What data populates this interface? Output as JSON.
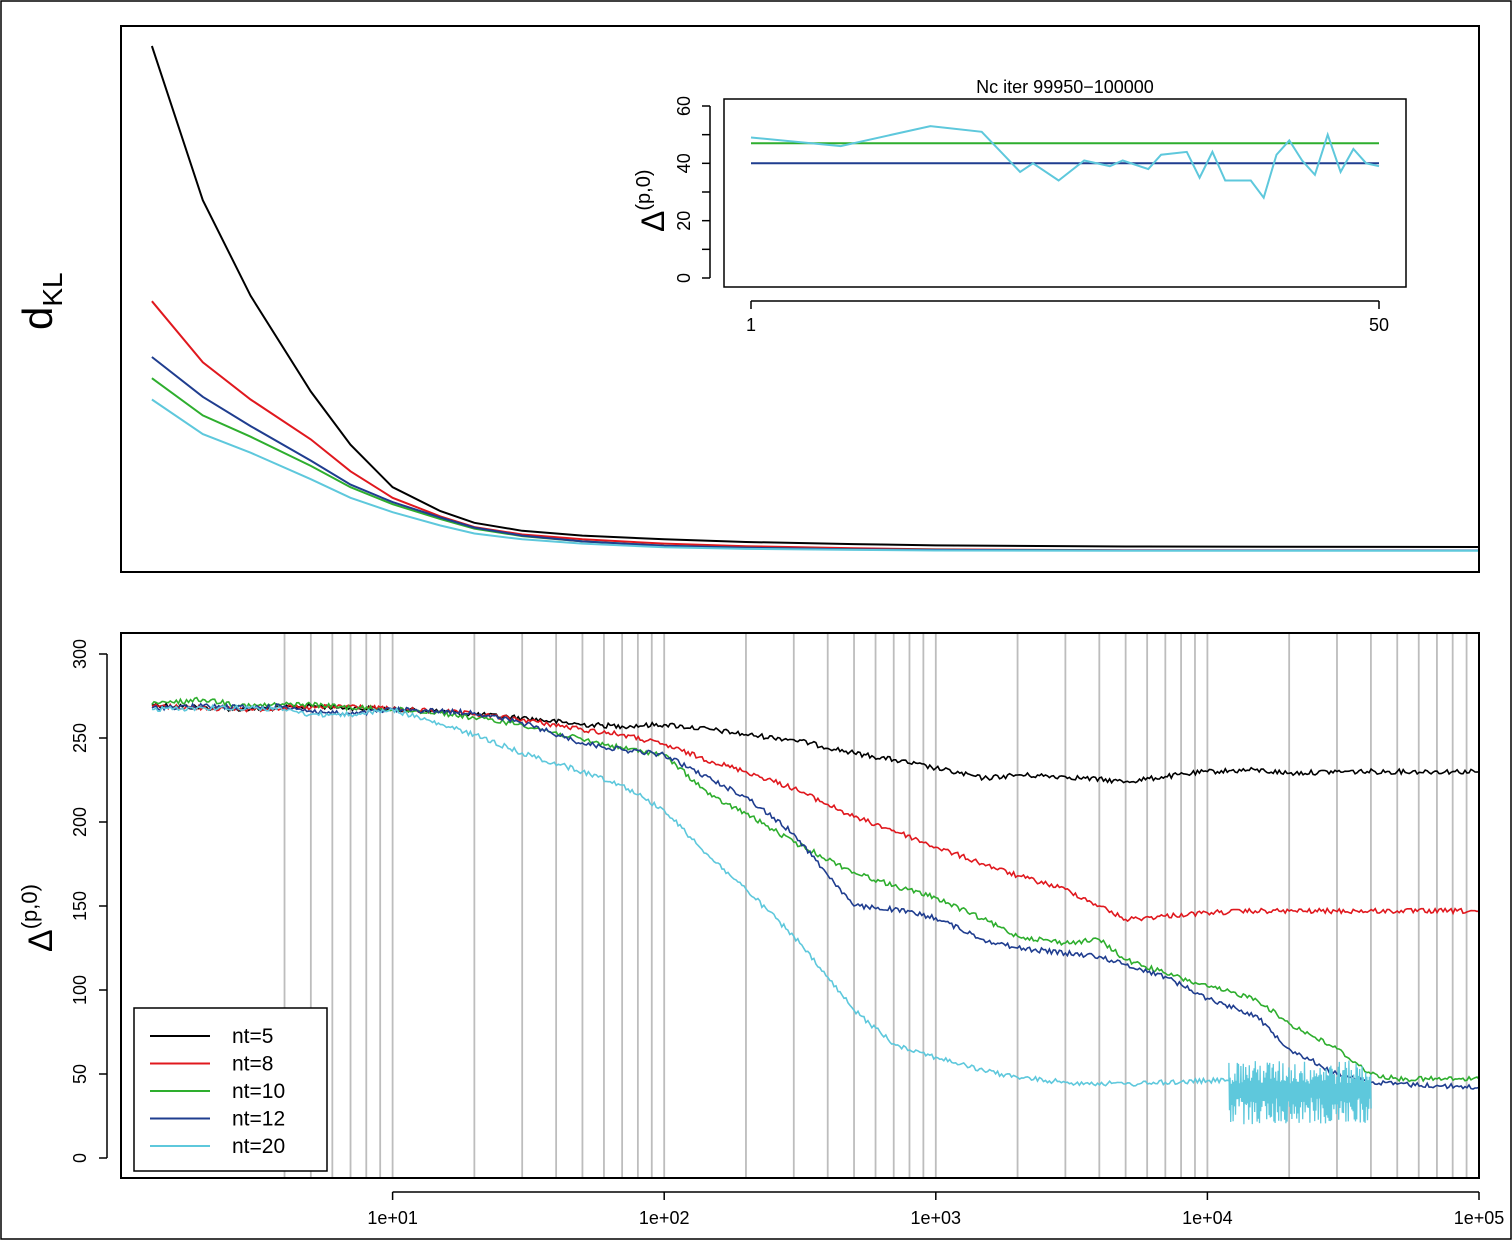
{
  "chart_data": [
    {
      "id": "top",
      "type": "line",
      "ylabel": "d",
      "ylabel_sub": "KL",
      "grid": false,
      "x_scale": "log",
      "xlim": [
        1,
        100000
      ],
      "ylim": [
        0,
        100
      ],
      "series": [
        {
          "name": "nt=5",
          "color": "#000000",
          "x": [
            1.3,
            2,
            3,
            5,
            7,
            10,
            15,
            20,
            30,
            50,
            100,
            200,
            500,
            1000,
            5000,
            100000
          ],
          "y": [
            95,
            66,
            48,
            30,
            20,
            12,
            7.5,
            5.3,
            3.8,
            2.9,
            2.2,
            1.7,
            1.3,
            1.05,
            0.85,
            0.75
          ]
        },
        {
          "name": "nt=8",
          "color": "#e0181e",
          "x": [
            1.3,
            2,
            3,
            5,
            7,
            10,
            15,
            20,
            30,
            50,
            100,
            200,
            500,
            1000,
            5000,
            100000
          ],
          "y": [
            47,
            35.5,
            28.5,
            21,
            15,
            10,
            6.5,
            4.5,
            3.1,
            2.2,
            1.4,
            0.9,
            0.5,
            0.3,
            0.15,
            0.1
          ]
        },
        {
          "name": "nt=10",
          "color": "#2eae2e",
          "x": [
            1.3,
            2,
            3,
            5,
            7,
            10,
            15,
            20,
            30,
            50,
            100,
            200,
            500,
            1000,
            5000,
            100000
          ],
          "y": [
            32.5,
            25.5,
            21.5,
            16,
            12,
            8.8,
            6,
            4.2,
            2.8,
            1.8,
            1,
            0.6,
            0.3,
            0.2,
            0.1,
            0.1
          ]
        },
        {
          "name": "nt=12",
          "color": "#1f3d8f",
          "x": [
            1.3,
            2,
            3,
            5,
            7,
            10,
            15,
            20,
            30,
            50,
            100,
            200,
            500,
            1000,
            5000,
            100000
          ],
          "y": [
            36.5,
            29,
            23.5,
            17,
            12.5,
            9.2,
            6.3,
            4.4,
            2.9,
            1.8,
            1,
            0.6,
            0.3,
            0.2,
            0.1,
            0.1
          ]
        },
        {
          "name": "nt=20",
          "color": "#5ec8dc",
          "x": [
            1.3,
            2,
            3,
            5,
            7,
            10,
            15,
            20,
            30,
            50,
            100,
            200,
            500,
            1000,
            5000,
            100000
          ],
          "y": [
            28.5,
            22,
            18.5,
            13.5,
            10,
            7.3,
            4.8,
            3.3,
            2.2,
            1.4,
            0.7,
            0.4,
            0.2,
            0.1,
            0.05,
            0.05
          ]
        }
      ]
    },
    {
      "id": "inset",
      "type": "line",
      "title": "Nc iter 99950−100000",
      "ylabel": "Δ",
      "ylabel_sup": "(p,0)",
      "xlim": [
        1,
        50
      ],
      "ylim": [
        0,
        60
      ],
      "yticks": [
        0,
        20,
        40,
        60
      ],
      "xtick_labels": [
        "1",
        "50"
      ],
      "grid": false,
      "series": [
        {
          "color": "#2eae2e",
          "x": [
            1,
            50
          ],
          "y": [
            47,
            47
          ]
        },
        {
          "color": "#1f3d8f",
          "x": [
            1,
            50
          ],
          "y": [
            40,
            40
          ]
        },
        {
          "color": "#5ec8dc",
          "x": [
            1,
            8,
            15,
            19,
            22,
            23,
            25,
            27,
            29,
            30,
            32,
            33,
            35,
            36,
            37,
            38,
            40,
            41,
            42,
            43,
            44,
            45,
            46,
            47,
            48,
            49,
            50
          ],
          "y": [
            49,
            46,
            53,
            51,
            37,
            40,
            34,
            41,
            39,
            41,
            38,
            43,
            44,
            35,
            44,
            34,
            34,
            28,
            43,
            48,
            41,
            36,
            50,
            37,
            45,
            40,
            39
          ]
        }
      ]
    },
    {
      "id": "bottom",
      "type": "line",
      "ylabel": "Δ",
      "ylabel_sup": "(p,0)",
      "x_scale": "log",
      "xlim": [
        1,
        100000
      ],
      "ylim": [
        0,
        300
      ],
      "yticks": [
        0,
        50,
        100,
        150,
        200,
        250,
        300
      ],
      "xticks": [
        10,
        100,
        1000,
        10000,
        100000
      ],
      "xtick_labels": [
        "1e+01",
        "1e+02",
        "1e+03",
        "1e+04",
        "1e+05"
      ],
      "vlines": [
        4,
        5,
        6,
        7,
        8,
        9,
        10,
        20,
        30,
        40,
        50,
        60,
        70,
        80,
        90,
        100,
        200,
        300,
        400,
        500,
        600,
        700,
        800,
        900,
        1000,
        2000,
        3000,
        4000,
        5000,
        6000,
        7000,
        8000,
        9000,
        10000,
        20000,
        30000,
        40000,
        50000,
        60000,
        70000,
        80000,
        90000,
        100000
      ],
      "legend": {
        "position": "bottom-left",
        "entries": [
          "nt=5",
          "nt=8",
          "nt=10",
          "nt=12",
          "nt=20"
        ]
      },
      "grid": false,
      "series": [
        {
          "name": "nt=5",
          "color": "#000000",
          "x": [
            1.3,
            2,
            3,
            4,
            5,
            7,
            10,
            15,
            20,
            30,
            50,
            70,
            100,
            150,
            200,
            300,
            500,
            700,
            1000,
            1500,
            2000,
            3000,
            5000,
            7000,
            10000,
            15000,
            20000,
            30000,
            50000,
            100000
          ],
          "y": [
            270,
            268,
            267,
            268,
            269,
            268,
            267,
            266,
            264,
            262,
            258,
            257,
            258,
            255,
            252,
            249,
            241,
            237,
            232,
            226,
            228,
            227,
            224,
            227,
            230,
            231,
            229,
            230,
            230,
            230
          ]
        },
        {
          "name": "nt=8",
          "color": "#e0181e",
          "x": [
            1.3,
            2,
            3,
            4,
            5,
            7,
            10,
            15,
            20,
            30,
            50,
            70,
            100,
            150,
            200,
            300,
            500,
            700,
            1000,
            1500,
            2000,
            3000,
            4000,
            5000,
            7000,
            10000,
            15000,
            20000,
            50000,
            100000
          ],
          "y": [
            269,
            268,
            267,
            268,
            268,
            269,
            267,
            266,
            264,
            261,
            255,
            252,
            246,
            236,
            230,
            220,
            203,
            195,
            185,
            175,
            168,
            160,
            150,
            142,
            144,
            146,
            147,
            147,
            147,
            147
          ]
        },
        {
          "name": "nt=10",
          "color": "#2eae2e",
          "x": [
            1.3,
            2,
            3,
            4,
            5,
            7,
            10,
            15,
            20,
            30,
            50,
            70,
            100,
            150,
            200,
            300,
            500,
            700,
            1000,
            1500,
            2000,
            3000,
            4000,
            5000,
            7000,
            10000,
            15000,
            20000,
            30000,
            40000,
            50000,
            100000
          ],
          "y": [
            270,
            273,
            269,
            270,
            270,
            268,
            267,
            265,
            262,
            258,
            249,
            244,
            240,
            215,
            205,
            188,
            170,
            162,
            155,
            142,
            132,
            128,
            130,
            118,
            110,
            102,
            95,
            80,
            65,
            50,
            47,
            47
          ]
        },
        {
          "name": "nt=12",
          "color": "#1f3d8f",
          "x": [
            1.3,
            2,
            3,
            4,
            5,
            7,
            10,
            15,
            20,
            30,
            50,
            70,
            100,
            150,
            200,
            300,
            500,
            700,
            1000,
            1500,
            2000,
            3000,
            4000,
            5000,
            7000,
            10000,
            15000,
            20000,
            30000,
            40000,
            50000,
            100000
          ],
          "y": [
            268,
            269,
            268,
            269,
            266,
            264,
            267,
            266,
            265,
            259,
            247,
            243,
            240,
            225,
            215,
            193,
            150,
            148,
            143,
            130,
            125,
            122,
            120,
            115,
            108,
            95,
            85,
            65,
            50,
            45,
            44,
            42
          ]
        },
        {
          "name": "nt=20",
          "color": "#5ec8dc",
          "x": [
            1.3,
            2,
            3,
            4,
            5,
            7,
            10,
            15,
            20,
            30,
            50,
            70,
            100,
            150,
            200,
            300,
            500,
            700,
            1000,
            1500,
            2000,
            3000,
            5000,
            7000,
            10000,
            12000
          ],
          "y": [
            267,
            268,
            268,
            267,
            264,
            264,
            267,
            258,
            252,
            241,
            230,
            222,
            207,
            178,
            160,
            132,
            88,
            68,
            60,
            52,
            48,
            45,
            44,
            45,
            46,
            46
          ],
          "noise": {
            "x_start": 12000,
            "x_end": 40000,
            "center": 40,
            "low": 20,
            "high": 58
          }
        }
      ]
    }
  ]
}
